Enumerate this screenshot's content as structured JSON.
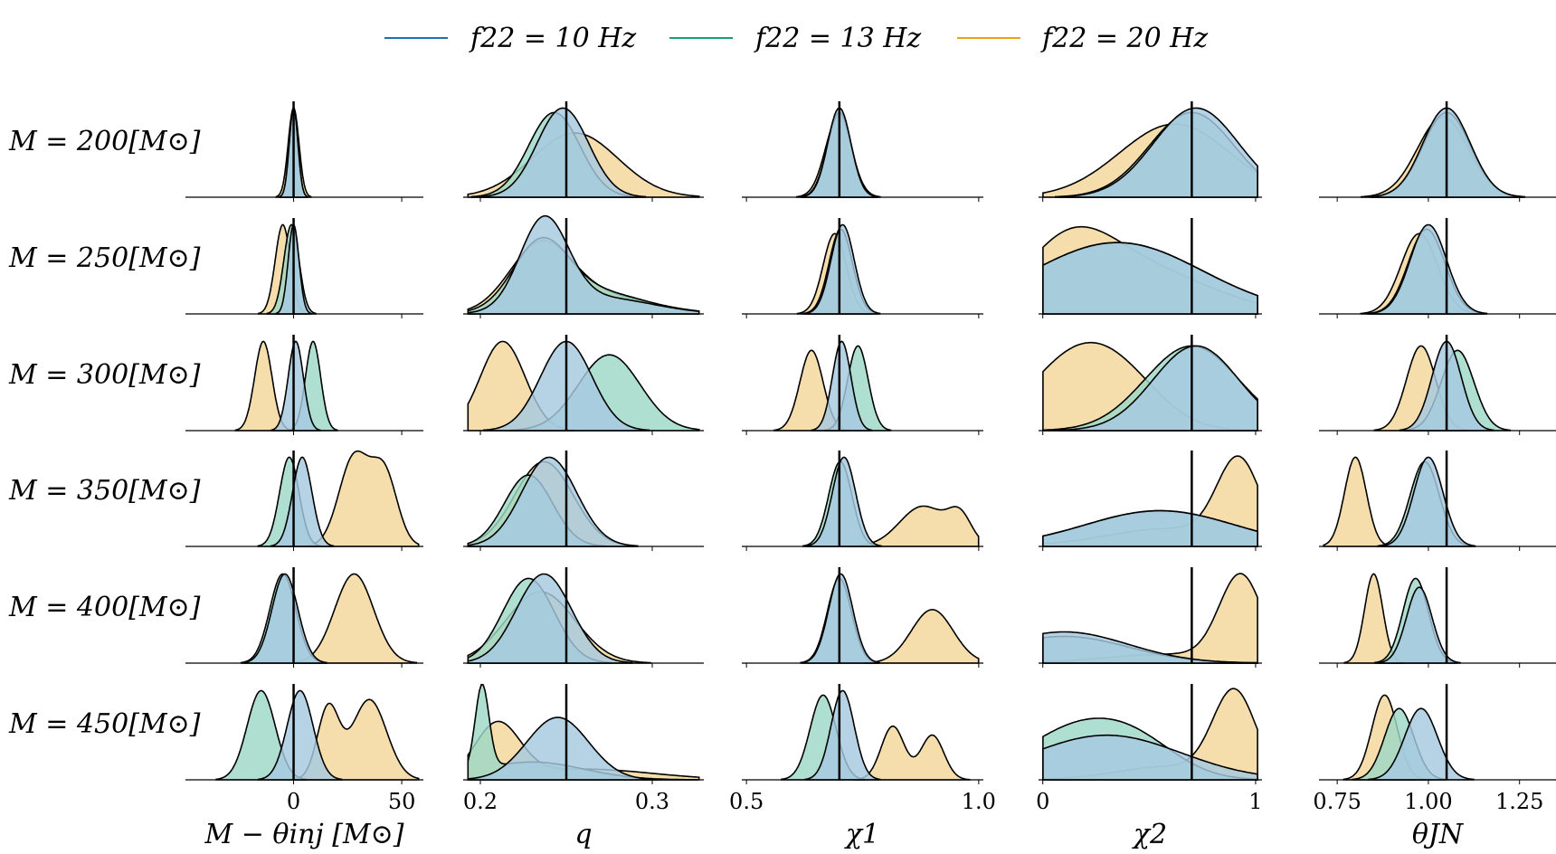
{
  "colors": {
    "f10_line": "#1f6fb4",
    "f13_line": "#1a9e77",
    "f20_line": "#e8a21a",
    "f10_fill": "#a6c9e0",
    "f13_fill": "#9ed8c6",
    "f20_fill": "#f3d79a",
    "overlap_fill": "#6bbdbd",
    "mix_fill": "#9cb988"
  },
  "legend": [
    {
      "key": "f10",
      "label": "f22 = 10 Hz"
    },
    {
      "key": "f13",
      "label": "f22 = 13 Hz"
    },
    {
      "key": "f20",
      "label": "f22 = 20 Hz"
    }
  ],
  "rows": [
    {
      "label": "M = 200[M⊙]"
    },
    {
      "label": "M = 250[M⊙]"
    },
    {
      "label": "M = 300[M⊙]"
    },
    {
      "label": "M = 350[M⊙]"
    },
    {
      "label": "M = 400[M⊙]"
    },
    {
      "label": "M = 450[M⊙]"
    }
  ],
  "chart_data": [
    {
      "type": "area",
      "title": "",
      "xlabel": "M − θinj [M⊙]",
      "xlim": [
        -50,
        60
      ],
      "ticks": [
        0,
        50
      ],
      "tick_labels": [
        "0",
        "50"
      ],
      "injection": 0,
      "rows": [
        {
          "f10": [
            [
              0,
              2.0,
              1
            ]
          ],
          "f13": [
            [
              0,
              2.0,
              1
            ]
          ],
          "f20": [
            [
              0,
              2.5,
              1
            ]
          ]
        },
        {
          "f10": [
            [
              0,
              2.5,
              1
            ]
          ],
          "f13": [
            [
              -1,
              3.5,
              1
            ]
          ],
          "f20": [
            [
              -5,
              3.5,
              1
            ]
          ]
        },
        {
          "f10": [
            [
              1,
              3.5,
              1
            ]
          ],
          "f13": [
            [
              9,
              3.5,
              1
            ]
          ],
          "f20": [
            [
              -14,
              4,
              1
            ]
          ]
        },
        {
          "f10": [
            [
              4,
              4.5,
              1
            ]
          ],
          "f13": [
            [
              -2,
              4.5,
              1
            ]
          ],
          "f20": [
            [
              28,
              7,
              1
            ],
            [
              42,
              6,
              0.8
            ]
          ]
        },
        {
          "f10": [
            [
              -4,
              6,
              1
            ]
          ],
          "f13": [
            [
              -5,
              6,
              1
            ]
          ],
          "f20": [
            [
              28,
              9,
              1
            ]
          ]
        },
        {
          "f10": [
            [
              3,
              6,
              1
            ]
          ],
          "f13": [
            [
              -15,
              6.5,
              1
            ]
          ],
          "f20": [
            [
              16,
              5,
              0.8
            ],
            [
              35,
              8,
              0.9
            ]
          ]
        }
      ]
    },
    {
      "type": "area",
      "title": "",
      "xlabel": "q",
      "xlim": [
        0.19,
        0.33
      ],
      "ticks": [
        0.2,
        0.3
      ],
      "tick_labels": [
        "0.2",
        "0.3"
      ],
      "injection": 0.25,
      "rows": [
        {
          "f10": [
            [
              0.248,
              0.015,
              1
            ]
          ],
          "f13": [
            [
              0.243,
              0.015,
              0.95
            ]
          ],
          "f20": [
            [
              0.255,
              0.025,
              0.72
            ]
          ]
        },
        {
          "f10": [
            [
              0.237,
              0.014,
              1
            ],
            [
              0.27,
              0.03,
              0.18
            ]
          ],
          "f13": [
            [
              0.235,
              0.016,
              0.7
            ],
            [
              0.265,
              0.03,
              0.25
            ]
          ],
          "f20": [
            [
              0.235,
              0.018,
              0.72
            ],
            [
              0.27,
              0.03,
              0.2
            ]
          ]
        },
        {
          "f10": [
            [
              0.25,
              0.015,
              1
            ]
          ],
          "f13": [
            [
              0.275,
              0.018,
              0.85
            ]
          ],
          "f20": [
            [
              0.213,
              0.013,
              1
            ]
          ]
        },
        {
          "f10": [
            [
              0.24,
              0.016,
              1
            ]
          ],
          "f13": [
            [
              0.228,
              0.014,
              0.8
            ]
          ],
          "f20": [
            [
              0.237,
              0.017,
              0.95
            ]
          ]
        },
        {
          "f10": [
            [
              0.237,
              0.016,
              1
            ]
          ],
          "f13": [
            [
              0.228,
              0.015,
              0.95
            ]
          ],
          "f20": [
            [
              0.235,
              0.02,
              0.8
            ]
          ]
        },
        {
          "f10": [
            [
              0.245,
              0.018,
              0.7
            ]
          ],
          "f13": [
            [
              0.201,
              0.004,
              0.95
            ],
            [
              0.23,
              0.03,
              0.2
            ]
          ],
          "f20": [
            [
              0.21,
              0.013,
              0.6
            ],
            [
              0.26,
              0.04,
              0.12
            ]
          ]
        }
      ]
    },
    {
      "type": "area",
      "title": "",
      "xlabel": "χ1",
      "xlim": [
        0.49,
        1.01
      ],
      "ticks": [
        0.5,
        1.0
      ],
      "tick_labels": [
        "0.5",
        "1.0"
      ],
      "injection": 0.7,
      "rows": [
        {
          "f10": [
            [
              0.7,
              0.025,
              1
            ]
          ],
          "f13": [
            [
              0.7,
              0.026,
              0.95
            ]
          ],
          "f20": [
            [
              0.698,
              0.028,
              0.9
            ]
          ]
        },
        {
          "f10": [
            [
              0.707,
              0.025,
              1
            ]
          ],
          "f13": [
            [
              0.703,
              0.025,
              0.95
            ]
          ],
          "f20": [
            [
              0.69,
              0.025,
              0.9
            ]
          ]
        },
        {
          "f10": [
            [
              0.705,
              0.02,
              1
            ]
          ],
          "f13": [
            [
              0.74,
              0.022,
              0.95
            ]
          ],
          "f20": [
            [
              0.64,
              0.025,
              0.9
            ]
          ]
        },
        {
          "f10": [
            [
              0.71,
              0.025,
              1
            ]
          ],
          "f13": [
            [
              0.702,
              0.025,
              0.95
            ]
          ],
          "f20": [
            [
              0.88,
              0.05,
              0.45
            ],
            [
              0.96,
              0.025,
              0.3
            ]
          ]
        },
        {
          "f10": [
            [
              0.703,
              0.026,
              1
            ]
          ],
          "f13": [
            [
              0.7,
              0.026,
              0.95
            ]
          ],
          "f20": [
            [
              0.9,
              0.045,
              0.6
            ]
          ]
        },
        {
          "f10": [
            [
              0.707,
              0.025,
              1
            ]
          ],
          "f13": [
            [
              0.665,
              0.028,
              0.95
            ]
          ],
          "f20": [
            [
              0.815,
              0.025,
              0.6
            ],
            [
              0.9,
              0.025,
              0.5
            ]
          ]
        }
      ]
    },
    {
      "type": "area",
      "title": "",
      "xlabel": "χ2",
      "xlim": [
        -0.02,
        1.03
      ],
      "ticks": [
        0,
        1
      ],
      "tick_labels": [
        "0",
        "1"
      ],
      "injection": 0.7,
      "rows": [
        {
          "f10": [
            [
              0.72,
              0.2,
              1
            ]
          ],
          "f13": [
            [
              0.7,
              0.2,
              0.95
            ]
          ],
          "f20": [
            [
              0.62,
              0.26,
              0.82
            ]
          ]
        },
        {
          "f10": [
            [
              0.35,
              0.4,
              0.8
            ]
          ],
          "f13": [
            [
              0.35,
              0.4,
              0.8
            ]
          ],
          "f20": [
            [
              0.12,
              0.2,
              0.55
            ],
            [
              0.4,
              0.35,
              0.55
            ]
          ]
        },
        {
          "f10": [
            [
              0.72,
              0.2,
              0.95
            ]
          ],
          "f13": [
            [
              0.7,
              0.22,
              0.95
            ]
          ],
          "f20": [
            [
              0.1,
              0.2,
              0.6
            ],
            [
              0.35,
              0.2,
              0.6
            ]
          ]
        },
        {
          "f10": [
            [
              0.55,
              0.35,
              0.4
            ]
          ],
          "f13": [
            [
              0.55,
              0.35,
              0.4
            ]
          ],
          "f20": [
            [
              0.92,
              0.1,
              0.9
            ],
            [
              0.6,
              0.3,
              0.2
            ]
          ]
        },
        {
          "f10": [
            [
              0.1,
              0.3,
              0.35
            ]
          ],
          "f13": [
            [
              0.1,
              0.3,
              0.3
            ]
          ],
          "f20": [
            [
              0.93,
              0.1,
              0.95
            ],
            [
              0.6,
              0.3,
              0.1
            ]
          ]
        },
        {
          "f10": [
            [
              0.3,
              0.35,
              0.5
            ]
          ],
          "f13": [
            [
              0.15,
              0.25,
              0.55
            ],
            [
              0.45,
              0.2,
              0.3
            ]
          ],
          "f20": [
            [
              0.9,
              0.1,
              0.95
            ],
            [
              0.6,
              0.25,
              0.15
            ]
          ]
        }
      ]
    },
    {
      "type": "area",
      "title": "",
      "xlabel": "θJN",
      "xlim": [
        0.7,
        1.35
      ],
      "ticks": [
        0.75,
        1.0,
        1.25
      ],
      "tick_labels": [
        "0.75",
        "1.00",
        "1.25"
      ],
      "injection": 1.05,
      "rows": [
        {
          "f10": [
            [
              1.05,
              0.065,
              1
            ]
          ],
          "f13": [
            [
              1.05,
              0.065,
              0.95
            ]
          ],
          "f20": [
            [
              1.04,
              0.07,
              0.9
            ]
          ]
        },
        {
          "f10": [
            [
              1.0,
              0.05,
              1
            ]
          ],
          "f13": [
            [
              0.995,
              0.05,
              0.95
            ]
          ],
          "f20": [
            [
              0.975,
              0.05,
              0.9
            ]
          ]
        },
        {
          "f10": [
            [
              1.05,
              0.04,
              1
            ]
          ],
          "f13": [
            [
              1.08,
              0.045,
              0.9
            ]
          ],
          "f20": [
            [
              0.98,
              0.04,
              0.95
            ]
          ]
        },
        {
          "f10": [
            [
              1.0,
              0.04,
              1
            ]
          ],
          "f13": [
            [
              0.99,
              0.04,
              0.95
            ]
          ],
          "f20": [
            [
              0.8,
              0.03,
              1
            ]
          ]
        },
        {
          "f10": [
            [
              0.975,
              0.035,
              0.85
            ]
          ],
          "f13": [
            [
              0.965,
              0.035,
              0.95
            ]
          ],
          "f20": [
            [
              0.85,
              0.025,
              1
            ]
          ]
        },
        {
          "f10": [
            [
              0.98,
              0.045,
              0.8
            ]
          ],
          "f13": [
            [
              0.92,
              0.04,
              0.8
            ]
          ],
          "f20": [
            [
              0.88,
              0.035,
              0.95
            ]
          ]
        }
      ]
    }
  ]
}
